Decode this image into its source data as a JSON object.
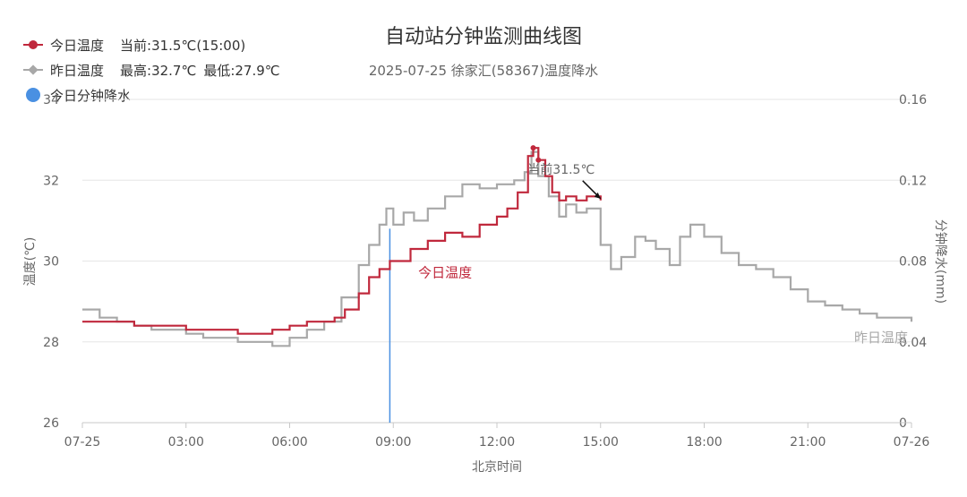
{
  "chart_data": {
    "type": "line",
    "title": "自动站分钟监测曲线图",
    "subtitle": "2025-07-25 徐家汇(58367)温度降水",
    "xlabel": "北京时间",
    "ylabel_left": "温度(℃)",
    "ylabel_right": "分钟降水(mm)",
    "x_ticks": [
      "07-25",
      "03:00",
      "06:00",
      "09:00",
      "12:00",
      "15:00",
      "18:00",
      "21:00",
      "07-26"
    ],
    "y_left_ticks": [
      "26",
      "28",
      "30",
      "32",
      "34"
    ],
    "y_right_ticks": [
      "0",
      "0.04",
      "0.08",
      "0.12",
      "0.16"
    ],
    "ylim_left": [
      26,
      34
    ],
    "ylim_right": [
      0,
      0.16
    ],
    "xlim_hours": [
      0,
      24
    ],
    "grid": true,
    "legend_position": "top-left",
    "colors": {
      "today": "#c0283c",
      "yesterday": "#a8a8a8",
      "rain": "#4a90e2",
      "grid": "#e6e6e6",
      "axis_text": "#666666"
    },
    "legend": [
      {
        "name": "今日温度",
        "marker": "circle",
        "stats": [
          "当前:31.5℃(15:00)"
        ]
      },
      {
        "name": "昨日温度",
        "marker": "diamond",
        "stats": [
          "最高:32.7℃",
          "最低:27.9℃"
        ]
      },
      {
        "name": "今日分钟降水",
        "marker": "bigcircle",
        "stats": []
      }
    ],
    "annotations": {
      "current_label": "当前31.5℃",
      "today_series_label": "今日温度",
      "yesterday_series_label": "昨日温度"
    },
    "series": [
      {
        "name": "今日温度",
        "axis": "left",
        "x": [
          0,
          1,
          1.5,
          2,
          2.5,
          3,
          3.5,
          4,
          4.5,
          5,
          5.5,
          6,
          6.5,
          7,
          7.3,
          7.6,
          8,
          8.3,
          8.6,
          8.9,
          9,
          9.5,
          10,
          10.5,
          11,
          11.5,
          12,
          12.3,
          12.6,
          12.9,
          13.05,
          13.2,
          13.4,
          13.6,
          13.8,
          14,
          14.3,
          14.6,
          15
        ],
        "y": [
          28.5,
          28.5,
          28.4,
          28.4,
          28.4,
          28.3,
          28.3,
          28.3,
          28.2,
          28.2,
          28.3,
          28.4,
          28.5,
          28.5,
          28.6,
          28.8,
          29.2,
          29.6,
          29.8,
          30.0,
          30.0,
          30.3,
          30.5,
          30.7,
          30.6,
          30.9,
          31.1,
          31.3,
          31.7,
          32.6,
          32.8,
          32.5,
          32.1,
          31.7,
          31.5,
          31.6,
          31.5,
          31.6,
          31.5
        ]
      },
      {
        "name": "昨日温度",
        "axis": "left",
        "x": [
          0,
          0.5,
          1,
          1.5,
          2,
          2.5,
          3,
          3.5,
          4,
          4.5,
          5,
          5.5,
          6,
          6.5,
          7,
          7.5,
          8,
          8.3,
          8.6,
          8.8,
          9,
          9.3,
          9.6,
          10,
          10.5,
          11,
          11.5,
          12,
          12.5,
          12.8,
          13,
          13.2,
          13.5,
          13.8,
          14,
          14.3,
          14.6,
          15,
          15.3,
          15.6,
          16,
          16.3,
          16.6,
          17,
          17.3,
          17.6,
          18,
          18.5,
          19,
          19.5,
          20,
          20.5,
          21,
          21.5,
          22,
          22.5,
          23,
          23.5,
          24
        ],
        "y": [
          28.8,
          28.6,
          28.5,
          28.4,
          28.3,
          28.3,
          28.2,
          28.1,
          28.1,
          28.0,
          28.0,
          27.9,
          28.1,
          28.3,
          28.5,
          29.1,
          29.9,
          30.4,
          30.9,
          31.3,
          30.9,
          31.2,
          31.0,
          31.3,
          31.6,
          31.9,
          31.8,
          31.9,
          32.0,
          32.2,
          32.7,
          32.1,
          31.6,
          31.1,
          31.4,
          31.2,
          31.3,
          30.4,
          29.8,
          30.1,
          30.6,
          30.5,
          30.3,
          29.9,
          30.6,
          30.9,
          30.6,
          30.2,
          29.9,
          29.8,
          29.6,
          29.3,
          29.0,
          28.9,
          28.8,
          28.7,
          28.6,
          28.6,
          28.5
        ]
      },
      {
        "name": "今日分钟降水",
        "axis": "right",
        "type": "bar",
        "x": [
          8.9
        ],
        "y": [
          0.096
        ]
      }
    ]
  }
}
